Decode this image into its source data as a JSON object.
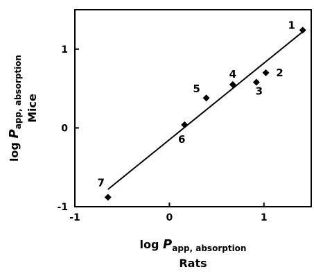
{
  "chart_data": {
    "type": "scatter",
    "title": "",
    "xlabel_main": "log ",
    "xlabel_italic": "P",
    "xlabel_sub": "app, absorption",
    "xlabel_second": "Rats",
    "ylabel_main": "log ",
    "ylabel_italic": "P",
    "ylabel_sub": "app, absorption",
    "ylabel_second": "Mice",
    "xlim": [
      -1,
      1.5
    ],
    "ylim": [
      -1,
      1.5
    ],
    "xticks": [
      -1,
      0,
      1
    ],
    "yticks": [
      -1,
      0,
      1
    ],
    "xtick_labels": [
      "-1",
      "0",
      "1"
    ],
    "ytick_labels": [
      "-1",
      "0",
      "1"
    ],
    "grid": false,
    "points": [
      {
        "label": "1",
        "x": 1.41,
        "y": 1.24
      },
      {
        "label": "2",
        "x": 1.02,
        "y": 0.7
      },
      {
        "label": "3",
        "x": 0.92,
        "y": 0.58
      },
      {
        "label": "4",
        "x": 0.67,
        "y": 0.55
      },
      {
        "label": "5",
        "x": 0.39,
        "y": 0.38
      },
      {
        "label": "6",
        "x": 0.16,
        "y": 0.04
      },
      {
        "label": "7",
        "x": -0.65,
        "y": -0.88
      }
    ],
    "trendline": {
      "x": [
        -0.65,
        1.41
      ],
      "y": [
        -0.78,
        1.22
      ]
    },
    "marker_color": "#000000",
    "line_color": "#000000"
  }
}
